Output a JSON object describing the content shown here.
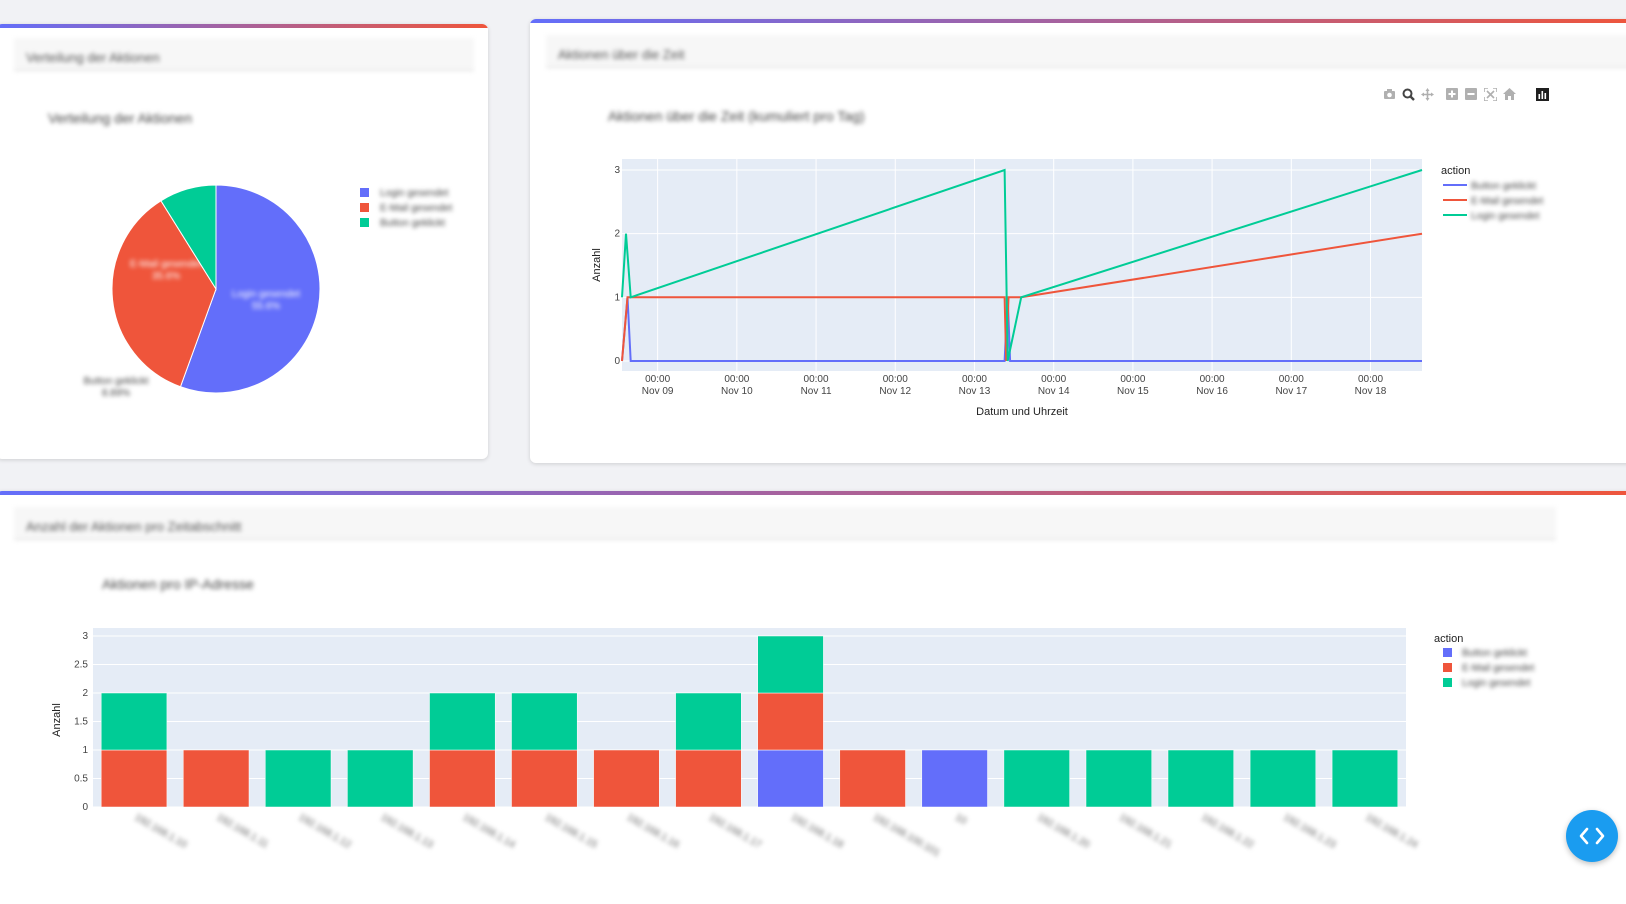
{
  "cards": {
    "pie": {
      "header": "Verteilung der Aktionen"
    },
    "line": {
      "header": "Aktionen über die Zeit"
    },
    "bar": {
      "header": "Anzahl der Aktionen pro Zeitabschnitt"
    }
  },
  "modebar_icons": [
    "camera-icon",
    "zoom-icon",
    "pan-icon",
    "zoom-in-icon",
    "zoom-out-icon",
    "autoscale-icon",
    "reset-axes-icon",
    "plotly-logo-icon"
  ],
  "colors": {
    "blue": "#636efa",
    "red": "#ef553b",
    "green": "#00cc96",
    "accent_gradient_start": "#636efa",
    "accent_gradient_end": "#ef553b",
    "fab": "#1a9cf0"
  },
  "chart_data": [
    {
      "type": "pie",
      "title": "Verteilung der Aktionen",
      "labels": [
        "Login gesendet",
        "E-Mail gesendet",
        "Button geklickt"
      ],
      "values": [
        55.6,
        35.6,
        8.89
      ],
      "slice_labels": [
        "Login gesendet\n55.6%",
        "E-Mail gesendet\n35.6%",
        "Button geklickt\n8.89%"
      ],
      "colors": [
        "#636efa",
        "#ef553b",
        "#00cc96"
      ],
      "legend_position": "right"
    },
    {
      "type": "line",
      "title": "Aktionen über die Zeit (kumuliert pro Tag)",
      "xlabel": "Datum und Uhrzeit",
      "ylabel": "Anzahl",
      "legend_title": "action",
      "ylim": [
        0,
        3
      ],
      "yticks": [
        "0",
        "1",
        "2",
        "3"
      ],
      "xticks": [
        {
          "time": "00:00",
          "date": "Nov 09"
        },
        {
          "time": "00:00",
          "date": "Nov 10"
        },
        {
          "time": "00:00",
          "date": "Nov 11"
        },
        {
          "time": "00:00",
          "date": "Nov 12"
        },
        {
          "time": "00:00",
          "date": "Nov 13"
        },
        {
          "time": "00:00",
          "date": "Nov 14"
        },
        {
          "time": "00:00",
          "date": "Nov 15"
        },
        {
          "time": "00:00",
          "date": "Nov 16"
        },
        {
          "time": "00:00",
          "date": "Nov 17"
        },
        {
          "time": "00:00",
          "date": "Nov 18"
        }
      ],
      "series": [
        {
          "name": "Button geklickt",
          "color": "#636efa",
          "points": [
            [
              8.55,
              0
            ],
            [
              8.62,
              1
            ],
            [
              8.66,
              0
            ],
            [
              13.38,
              0
            ],
            [
              13.42,
              1
            ],
            [
              13.45,
              0
            ],
            [
              18.65,
              0
            ]
          ]
        },
        {
          "name": "E-Mail gesendet",
          "color": "#ef553b",
          "points": [
            [
              8.55,
              0
            ],
            [
              8.62,
              1
            ],
            [
              13.38,
              1
            ],
            [
              13.4,
              0
            ],
            [
              13.43,
              1
            ],
            [
              13.59,
              1
            ],
            [
              18.65,
              2
            ]
          ]
        },
        {
          "name": "Login gesendet",
          "color": "#00cc96",
          "points": [
            [
              8.55,
              1
            ],
            [
              8.6,
              2
            ],
            [
              8.66,
              1
            ],
            [
              13.38,
              3
            ],
            [
              13.42,
              0
            ],
            [
              13.59,
              1
            ],
            [
              18.65,
              3
            ]
          ]
        }
      ],
      "legend_position": "right"
    },
    {
      "type": "bar",
      "title": "Aktionen pro IP-Adresse",
      "ylabel": "Anzahl",
      "legend_title": "action",
      "ylim": [
        0,
        3
      ],
      "yticks": [
        "0",
        "0.5",
        "1",
        "1.5",
        "2",
        "2.5",
        "3"
      ],
      "categories": [
        "192.168.1.10",
        "192.168.1.11",
        "192.168.1.12",
        "192.168.1.13",
        "192.168.1.14",
        "192.168.1.15",
        "192.168.1.16",
        "192.168.1.17",
        "192.168.1.18",
        "192.168.100.101",
        "10",
        "192.168.1.20",
        "192.168.1.21",
        "192.168.1.22",
        "192.168.1.23",
        "192.168.1.24"
      ],
      "series": [
        {
          "name": "Button geklickt",
          "color": "#636efa",
          "values": [
            0,
            0,
            0,
            0,
            0,
            0,
            0,
            0,
            1,
            0,
            1,
            0,
            0,
            0,
            0,
            0
          ]
        },
        {
          "name": "E-Mail gesendet",
          "color": "#ef553b",
          "values": [
            1,
            1,
            0,
            0,
            1,
            1,
            1,
            1,
            1,
            1,
            0,
            0,
            0,
            0,
            0,
            0
          ]
        },
        {
          "name": "Login gesendet",
          "color": "#00cc96",
          "values": [
            1,
            0,
            1,
            1,
            1,
            1,
            0,
            1,
            1,
            0,
            0,
            1,
            1,
            1,
            1,
            1
          ]
        }
      ],
      "legend_position": "right"
    }
  ]
}
